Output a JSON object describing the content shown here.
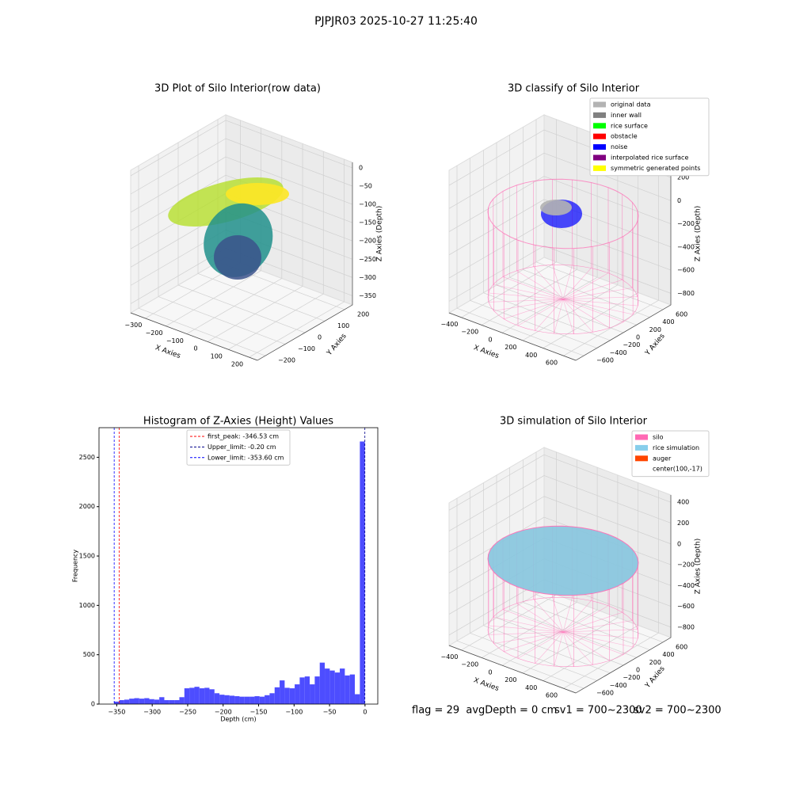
{
  "title": "PJPJR03 2025-10-27 11:25:40",
  "footer": [
    "flag = 29  avgDepth = 0 cm",
    "sv1 = 700~2300",
    "sv2 = 700~2300"
  ],
  "chart_data": [
    {
      "type": "scatter3d",
      "title": "3D Plot of Silo Interior(row data)",
      "xlabel": "X Axies",
      "ylabel": "Y Axies",
      "zlabel": "Z Axies (Depth)",
      "xlim": [
        -370,
        240
      ],
      "xticks": [
        {
          "value": -300,
          "label": "−300"
        },
        {
          "value": -200,
          "label": "−200"
        },
        {
          "value": -100,
          "label": "−100"
        },
        0,
        100,
        200
      ],
      "ylim": [
        -240,
        240
      ],
      "yticks": [
        {
          "value": -200,
          "label": "−200"
        },
        {
          "value": -100,
          "label": "−100"
        },
        0,
        100,
        200
      ],
      "zlim": [
        -375,
        15
      ],
      "zticks": [
        0,
        {
          "value": -50,
          "label": "−50"
        },
        {
          "value": -100,
          "label": "−100"
        },
        {
          "value": -150,
          "label": "−150"
        },
        {
          "value": -200,
          "label": "−200"
        },
        {
          "value": -250,
          "label": "−250"
        },
        {
          "value": -300,
          "label": "−300"
        },
        {
          "value": -350,
          "label": "−350"
        }
      ]
    },
    {
      "type": "wireframe3d",
      "title": "3D classify of Silo Interior",
      "xlabel": "X Axies",
      "ylabel": "Y Axies",
      "zlabel": "Z Axies (Depth)",
      "xlim": [
        -520,
        720
      ],
      "xticks": [
        {
          "value": -400,
          "label": "−400"
        },
        {
          "value": -200,
          "label": "−200"
        },
        0,
        200,
        400,
        600
      ],
      "ylim": [
        -720,
        720
      ],
      "yticks": [
        {
          "value": -600,
          "label": "−600"
        },
        {
          "value": -400,
          "label": "−400"
        },
        {
          "value": -200,
          "label": "−200"
        },
        0,
        200,
        400,
        600
      ],
      "zlim": [
        -900,
        330
      ],
      "zticks": [
        200,
        0,
        {
          "value": -200,
          "label": "−200"
        },
        {
          "value": -400,
          "label": "−400"
        },
        {
          "value": -600,
          "label": "−600"
        },
        {
          "value": -800,
          "label": "−800"
        }
      ],
      "legend": [
        {
          "name": "original data",
          "color": "#b3b3b3"
        },
        {
          "name": "inner wall",
          "color": "#808080"
        },
        {
          "name": "rice surface",
          "color": "#00ff00"
        },
        {
          "name": "obstacle",
          "color": "#ff0000"
        },
        {
          "name": "noise",
          "color": "#0000ff"
        },
        {
          "name": "interpolated rice surface",
          "color": "#800080"
        },
        {
          "name": "symmetric generated points",
          "color": "#ffff00"
        }
      ]
    },
    {
      "type": "histogram",
      "title": "Histogram of Z-Axies (Height) Values",
      "xlabel": "Depth (cm)",
      "ylabel": "Frequency",
      "color": "#4d4dff",
      "bins": [
        -353.6,
        -346.532,
        -339.464,
        -332.396,
        -325.328,
        -318.26,
        -311.192,
        -304.124,
        -297.056,
        -289.988,
        -282.92,
        -275.852,
        -268.784,
        -261.716,
        -254.648,
        -247.58,
        -240.512,
        -233.444,
        -226.376,
        -219.308,
        -212.24,
        -205.172,
        -198.104,
        -191.036,
        -183.968,
        -176.9,
        -169.832,
        -162.764,
        -155.696,
        -148.628,
        -141.56,
        -134.492,
        -127.424,
        -120.356,
        -113.288,
        -106.22,
        -99.152,
        -92.084,
        -85.016,
        -77.948,
        -70.88,
        -63.812,
        -56.744,
        -49.676,
        -42.608,
        -35.54,
        -28.472,
        -21.404,
        -14.336,
        -7.268,
        -0.2
      ],
      "values": [
        25,
        40,
        45,
        55,
        60,
        55,
        60,
        50,
        45,
        70,
        40,
        40,
        40,
        70,
        160,
        165,
        175,
        160,
        165,
        150,
        110,
        95,
        90,
        85,
        80,
        75,
        75,
        75,
        80,
        75,
        90,
        110,
        170,
        240,
        165,
        160,
        200,
        270,
        280,
        200,
        280,
        420,
        360,
        340,
        320,
        360,
        290,
        300,
        100,
        2660
      ],
      "xlim": [
        -375,
        18
      ],
      "xticks": [
        {
          "value": -350,
          "label": "−350"
        },
        {
          "value": -300,
          "label": "−300"
        },
        {
          "value": -250,
          "label": "−250"
        },
        {
          "value": -200,
          "label": "−200"
        },
        {
          "value": -150,
          "label": "−150"
        },
        {
          "value": -100,
          "label": "−100"
        },
        {
          "value": -50,
          "label": "−50"
        },
        0
      ],
      "ylim": [
        0,
        2800
      ],
      "yticks": [
        0,
        500,
        1000,
        1500,
        2000,
        2500
      ],
      "vlines": [
        {
          "name": "first_peak: -346.53 cm",
          "value": -346.53,
          "color": "#ff0000"
        },
        {
          "name": "Upper_limit: -0.20 cm",
          "value": -0.2,
          "color": "#00008b"
        },
        {
          "name": "Lower_limit: -353.60 cm",
          "value": -353.6,
          "color": "#0000ff"
        }
      ]
    },
    {
      "type": "wireframe3d",
      "title": "3D simulation of Silo Interior",
      "fill": "#87c6df",
      "xlabel": "X Axies",
      "ylabel": "Y Axies",
      "zlabel": "Z Axies (Depth)",
      "xlim": [
        -520,
        720
      ],
      "xticks": [
        {
          "value": -400,
          "label": "−400"
        },
        {
          "value": -200,
          "label": "−200"
        },
        0,
        200,
        400,
        600
      ],
      "ylim": [
        -720,
        720
      ],
      "yticks": [
        {
          "value": -600,
          "label": "−600"
        },
        {
          "value": -400,
          "label": "−400"
        },
        {
          "value": -200,
          "label": "−200"
        },
        0,
        200,
        400,
        600
      ],
      "zlim": [
        -900,
        470
      ],
      "zticks": [
        400,
        200,
        0,
        {
          "value": -200,
          "label": "−200"
        },
        {
          "value": -400,
          "label": "−400"
        },
        {
          "value": -600,
          "label": "−600"
        },
        {
          "value": -800,
          "label": "−800"
        }
      ],
      "legend": [
        {
          "name": "silo",
          "color": "#ff69b4"
        },
        {
          "name": "rice simulation",
          "color": "#87ceeb"
        },
        {
          "name": "auger",
          "color": "#ff4500"
        },
        {
          "name": "center(100,-17)"
        }
      ]
    }
  ]
}
